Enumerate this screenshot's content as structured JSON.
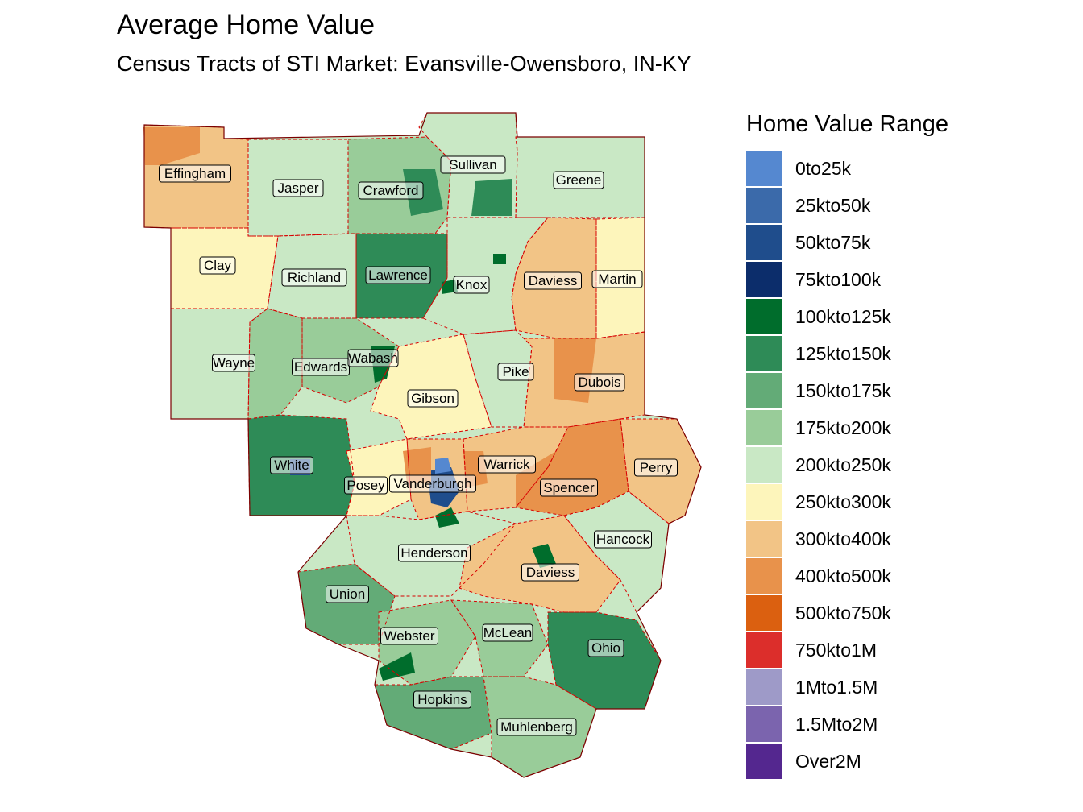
{
  "title": "Average Home Value",
  "subtitle": "Census Tracts of STI Market: Evansville-Owensboro, IN-KY",
  "legend": {
    "title": "Home Value Range",
    "items": [
      {
        "label": "0to25k",
        "color": "#5588d0"
      },
      {
        "label": "25kto50k",
        "color": "#3b6aaa"
      },
      {
        "label": "50kto75k",
        "color": "#1f4d8c"
      },
      {
        "label": "75kto100k",
        "color": "#0c2d6b"
      },
      {
        "label": "100kto125k",
        "color": "#006d2c"
      },
      {
        "label": "125kto150k",
        "color": "#2e8b57"
      },
      {
        "label": "150kto175k",
        "color": "#63ab77"
      },
      {
        "label": "175kto200k",
        "color": "#99cc99"
      },
      {
        "label": "200kto250k",
        "color": "#c9e8c5"
      },
      {
        "label": "250kto300k",
        "color": "#fdf5bb"
      },
      {
        "label": "300kto400k",
        "color": "#f2c486"
      },
      {
        "label": "400kto500k",
        "color": "#e8924b"
      },
      {
        "label": "500kto750k",
        "color": "#db6010"
      },
      {
        "label": "750kto1M",
        "color": "#dc2e2b"
      },
      {
        "label": "1Mto1.5M",
        "color": "#9e9ac8"
      },
      {
        "label": "1.5Mto2M",
        "color": "#7b64ae"
      },
      {
        "label": "Over2M",
        "color": "#54278f"
      }
    ]
  },
  "counties": [
    {
      "name": "Effingham",
      "range": "300kto400k"
    },
    {
      "name": "Jasper",
      "range": "200kto250k"
    },
    {
      "name": "Crawford",
      "range": "175kto200k"
    },
    {
      "name": "Sullivan",
      "range": "200kto250k"
    },
    {
      "name": "Greene",
      "range": "200kto250k"
    },
    {
      "name": "Clay",
      "range": "250kto300k"
    },
    {
      "name": "Richland",
      "range": "200kto250k"
    },
    {
      "name": "Lawrence",
      "range": "125kto150k"
    },
    {
      "name": "Knox",
      "range": "200kto250k"
    },
    {
      "name": "Daviess",
      "range": "300kto400k"
    },
    {
      "name": "Martin",
      "range": "250kto300k"
    },
    {
      "name": "Wayne",
      "range": "200kto250k"
    },
    {
      "name": "Edwards",
      "range": "175kto200k"
    },
    {
      "name": "Wabash",
      "range": "175kto200k"
    },
    {
      "name": "Pike",
      "range": "200kto250k"
    },
    {
      "name": "Dubois",
      "range": "300kto400k"
    },
    {
      "name": "Gibson",
      "range": "250kto300k"
    },
    {
      "name": "White",
      "range": "125kto150k"
    },
    {
      "name": "Posey",
      "range": "250kto300k"
    },
    {
      "name": "Vanderburgh",
      "range": "300kto400k"
    },
    {
      "name": "Warrick",
      "range": "300kto400k"
    },
    {
      "name": "Spencer",
      "range": "400kto500k"
    },
    {
      "name": "Perry",
      "range": "300kto400k"
    },
    {
      "name": "Hancock",
      "range": "200kto250k"
    },
    {
      "name": "Henderson",
      "range": "200kto250k"
    },
    {
      "name": "Daviess",
      "range": "300kto400k"
    },
    {
      "name": "Union",
      "range": "150kto175k"
    },
    {
      "name": "Webster",
      "range": "175kto200k"
    },
    {
      "name": "McLean",
      "range": "175kto200k"
    },
    {
      "name": "Ohio",
      "range": "125kto150k"
    },
    {
      "name": "Hopkins",
      "range": "150kto175k"
    },
    {
      "name": "Muhlenberg",
      "range": "175kto200k"
    }
  ]
}
